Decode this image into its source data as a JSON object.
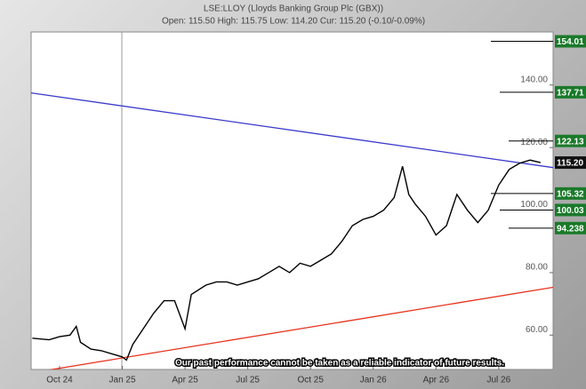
{
  "chart_data": {
    "type": "line",
    "title": "LSE:LLOY (Lloyds Banking Group Plc (GBX))",
    "subtitle": "Open: 115.50 High: 115.75 Low: 114.20 Cur: 115.20 (-0.10/-0.09%)",
    "disclaimer": "Our past performance cannot be taken as a reliable indicator of future results.",
    "xlim": [
      -1.36,
      23.6
    ],
    "xticks": [
      {
        "value": 0,
        "label": "Oct 24"
      },
      {
        "value": 3,
        "label": "Jan 25"
      },
      {
        "value": 6,
        "label": "Apr 25"
      },
      {
        "value": 9,
        "label": "Jul 25"
      },
      {
        "value": 12,
        "label": "Oct 25"
      },
      {
        "value": 15,
        "label": "Jan 26"
      },
      {
        "value": 18,
        "label": "Apr 26"
      },
      {
        "value": 21,
        "label": "Jul 26"
      }
    ],
    "ylim": [
      49,
      157
    ],
    "yticks": [
      {
        "value": 60,
        "label": "60.00"
      },
      {
        "value": 80,
        "label": "80.00"
      },
      {
        "value": 100,
        "label": "100.00"
      },
      {
        "value": 120,
        "label": "120.00"
      },
      {
        "value": 140,
        "label": "140.00"
      }
    ],
    "series": [
      {
        "name": "LSE:LLOY",
        "color": "#000000",
        "x": [
          -1.3,
          -0.5,
          0,
          0.5,
          0.8,
          1,
          1.5,
          2,
          2.5,
          3,
          3.2,
          3.5,
          4,
          4.5,
          5,
          5.5,
          6,
          6.3,
          7,
          7.5,
          8,
          8.5,
          9,
          9.5,
          10,
          10.5,
          11,
          11.5,
          12,
          12.5,
          13,
          13.5,
          14,
          14.5,
          15,
          15.5,
          16,
          16.4,
          16.7,
          17,
          17.5,
          18,
          18.5,
          19,
          19.5,
          20,
          20.5,
          21,
          21.5,
          22,
          22.5,
          23
        ],
        "values": [
          59,
          58.5,
          59.5,
          60,
          62.8,
          57.7,
          55.5,
          55,
          54,
          53,
          52,
          57,
          62,
          67,
          71,
          71,
          62,
          73,
          76,
          77,
          77,
          76,
          77,
          78,
          80,
          82,
          80,
          83,
          82,
          84,
          86,
          90,
          95,
          97,
          98,
          100,
          104,
          114,
          105,
          102,
          98,
          92,
          95,
          105,
          100,
          96,
          100,
          108,
          113,
          115,
          116,
          115.2
        ]
      }
    ],
    "trend_lines": [
      {
        "color": "#3a3acc",
        "x": [
          -1.36,
          23.6
        ],
        "values": [
          137.5,
          113.6
        ]
      },
      {
        "color": "#e8301c",
        "x": [
          -0.9,
          23.6
        ],
        "values": [
          48.4,
          75.3
        ]
      }
    ],
    "levels": [
      {
        "value": 154.01,
        "label": "154.01"
      },
      {
        "value": 137.71,
        "label": "137.71"
      },
      {
        "value": 122.13,
        "label": "122.13"
      },
      {
        "value": 105.32,
        "label": "105.32"
      },
      {
        "value": 100.03,
        "label": "100.03"
      },
      {
        "value": 94.238,
        "label": "94.238"
      }
    ],
    "level_color": "#1a7a2a",
    "current": {
      "value": 115.2,
      "label": "115.20"
    }
  }
}
